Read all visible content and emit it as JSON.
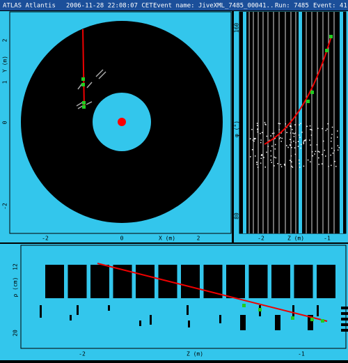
{
  "header": {
    "app": "ATLAS Atlantis",
    "date": "2006-11-28 22:08:07 CET",
    "event_name": "Event name: JiveXML_7485_00041...",
    "run": "Run: 7485",
    "event": "Event: 41"
  },
  "panels": [
    {
      "y_label": "Y (m)",
      "y_ticks": [
        "2",
        "1",
        "0",
        "-2"
      ],
      "x_label": "X (m)",
      "x_ticks": [
        "-2",
        "0",
        "2"
      ]
    },
    {
      "y_label": "φ (°)",
      "y_ticks": [
        "160",
        "80"
      ],
      "x_label": "Z (m)",
      "x_ticks": [
        "-2",
        "-1"
      ]
    },
    {
      "y_label": "ρ (cm)",
      "y_ticks": [
        "12",
        "20"
      ],
      "x_label": "Z (m)",
      "x_ticks": [
        "-2",
        "-1"
      ]
    }
  ]
}
